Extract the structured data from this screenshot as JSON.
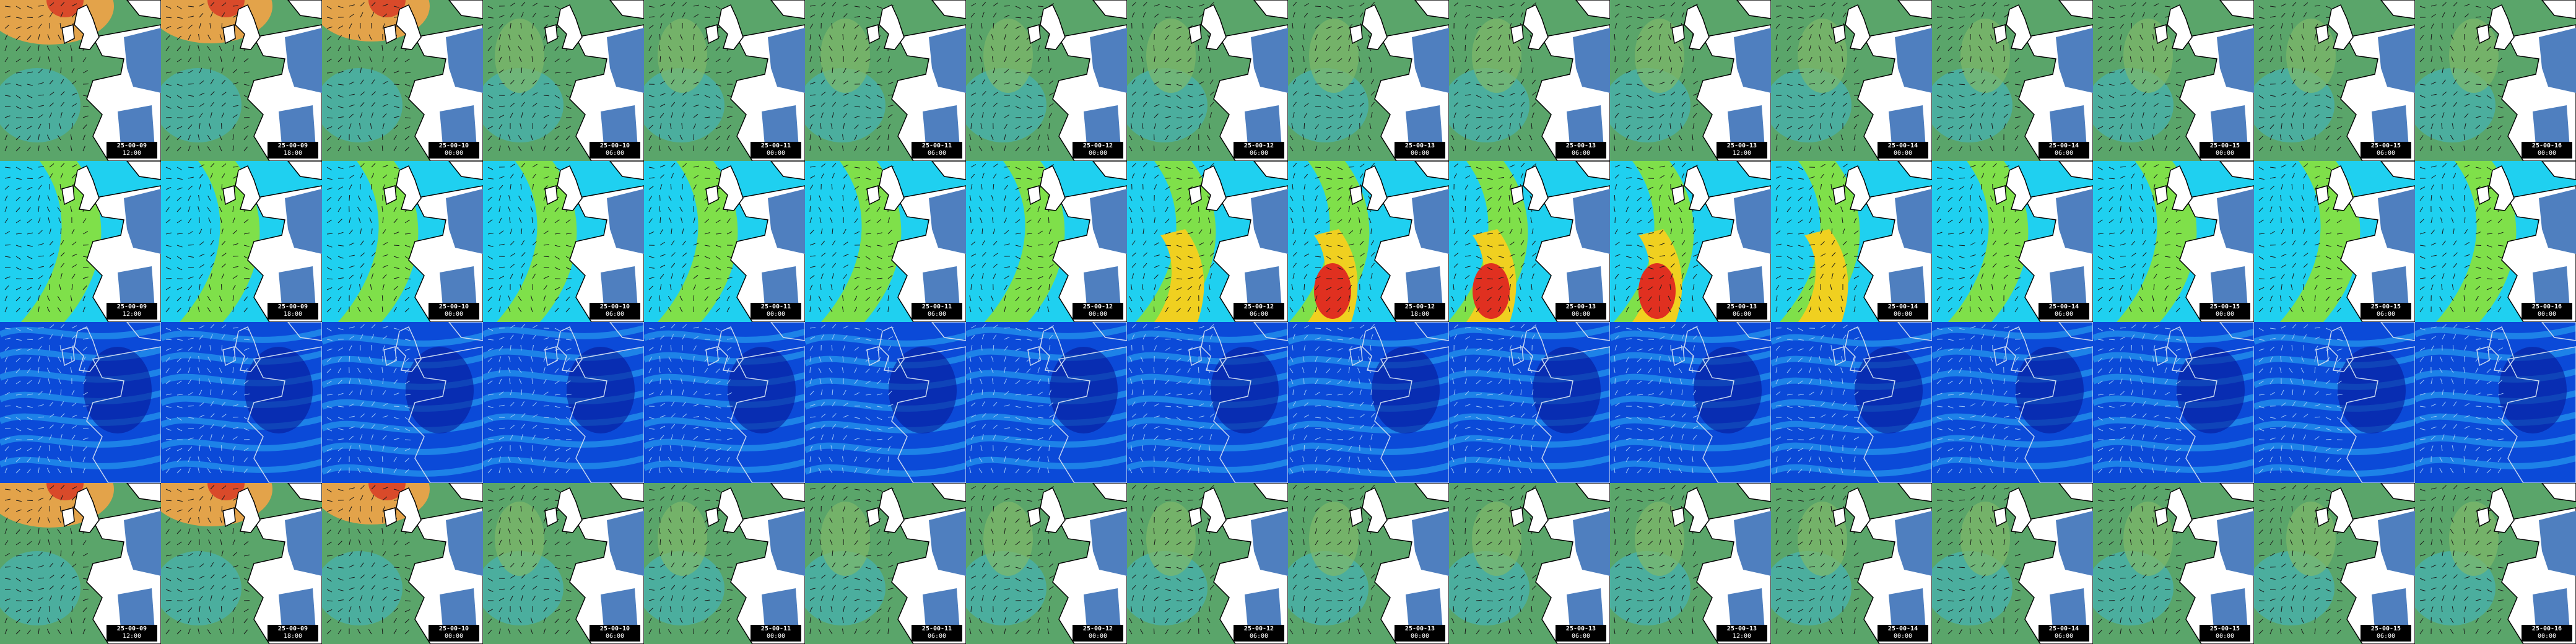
{
  "rows": [
    {
      "name": "row-1",
      "palette": "wind",
      "frames": [
        {
          "date": "25-00-09",
          "time": "12:00",
          "level": 0.85
        },
        {
          "date": "25-00-09",
          "time": "18:00",
          "level": 0.75
        },
        {
          "date": "25-00-10",
          "time": "00:00",
          "level": 0.6
        },
        {
          "date": "25-00-10",
          "time": "06:00",
          "level": 0.5
        },
        {
          "date": "25-00-11",
          "time": "00:00",
          "level": 0.35
        },
        {
          "date": "25-00-11",
          "time": "06:00",
          "level": 0.35
        },
        {
          "date": "25-00-12",
          "time": "00:00",
          "level": 0.25
        },
        {
          "date": "25-00-12",
          "time": "06:00",
          "level": 0.2
        },
        {
          "date": "25-00-13",
          "time": "00:00",
          "level": 0.3
        },
        {
          "date": "25-00-13",
          "time": "06:00",
          "level": 0.3
        },
        {
          "date": "25-00-13",
          "time": "12:00",
          "level": 0.35
        },
        {
          "date": "25-00-14",
          "time": "00:00",
          "level": 0.3
        },
        {
          "date": "25-00-14",
          "time": "06:00",
          "level": 0.25
        },
        {
          "date": "25-00-15",
          "time": "00:00",
          "level": 0.2
        },
        {
          "date": "25-00-15",
          "time": "06:00",
          "level": 0.2
        },
        {
          "date": "25-00-16",
          "time": "00:00",
          "level": 0.25
        }
      ]
    },
    {
      "name": "row-2",
      "palette": "wave",
      "frames": [
        {
          "date": "25-00-09",
          "time": "12:00",
          "level": 0.45
        },
        {
          "date": "25-00-09",
          "time": "18:00",
          "level": 0.5
        },
        {
          "date": "25-00-10",
          "time": "00:00",
          "level": 0.55
        },
        {
          "date": "25-00-10",
          "time": "06:00",
          "level": 0.6
        },
        {
          "date": "25-00-11",
          "time": "00:00",
          "level": 0.6
        },
        {
          "date": "25-00-11",
          "time": "06:00",
          "level": 0.55
        },
        {
          "date": "25-00-12",
          "time": "00:00",
          "level": 0.5
        },
        {
          "date": "25-00-12",
          "time": "06:00",
          "level": 0.7
        },
        {
          "date": "25-00-12",
          "time": "18:00",
          "level": 0.85
        },
        {
          "date": "25-00-13",
          "time": "00:00",
          "level": 0.9
        },
        {
          "date": "25-00-13",
          "time": "06:00",
          "level": 0.8
        },
        {
          "date": "25-00-14",
          "time": "00:00",
          "level": 0.7
        },
        {
          "date": "25-00-14",
          "time": "06:00",
          "level": 0.55
        },
        {
          "date": "25-00-15",
          "time": "00:00",
          "level": 0.4
        },
        {
          "date": "25-00-15",
          "time": "06:00",
          "level": 0.35
        },
        {
          "date": "25-00-16",
          "time": "00:00",
          "level": 0.45
        }
      ]
    },
    {
      "name": "row-3",
      "palette": "current",
      "frames": [
        {
          "date": "",
          "time": "",
          "level": 0.4
        },
        {
          "date": "",
          "time": "",
          "level": 0.4
        },
        {
          "date": "",
          "time": "",
          "level": 0.4
        },
        {
          "date": "",
          "time": "",
          "level": 0.4
        },
        {
          "date": "",
          "time": "",
          "level": 0.4
        },
        {
          "date": "",
          "time": "",
          "level": 0.4
        },
        {
          "date": "",
          "time": "",
          "level": 0.4
        },
        {
          "date": "",
          "time": "",
          "level": 0.4
        },
        {
          "date": "",
          "time": "",
          "level": 0.4
        },
        {
          "date": "",
          "time": "",
          "level": 0.4
        },
        {
          "date": "",
          "time": "",
          "level": 0.4
        },
        {
          "date": "",
          "time": "",
          "level": 0.4
        },
        {
          "date": "",
          "time": "",
          "level": 0.4
        },
        {
          "date": "",
          "time": "",
          "level": 0.4
        },
        {
          "date": "",
          "time": "",
          "level": 0.4
        },
        {
          "date": "",
          "time": "",
          "level": 0.4
        }
      ]
    },
    {
      "name": "row-4",
      "palette": "wind",
      "frames": [
        {
          "date": "25-00-09",
          "time": "12:00",
          "level": 0.85
        },
        {
          "date": "25-00-09",
          "time": "18:00",
          "level": 0.75
        },
        {
          "date": "25-00-10",
          "time": "00:00",
          "level": 0.6
        },
        {
          "date": "25-00-10",
          "time": "06:00",
          "level": 0.5
        },
        {
          "date": "25-00-11",
          "time": "00:00",
          "level": 0.35
        },
        {
          "date": "25-00-11",
          "time": "06:00",
          "level": 0.35
        },
        {
          "date": "25-00-12",
          "time": "00:00",
          "level": 0.25
        },
        {
          "date": "25-00-12",
          "time": "06:00",
          "level": 0.2
        },
        {
          "date": "25-00-13",
          "time": "00:00",
          "level": 0.3
        },
        {
          "date": "25-00-13",
          "time": "06:00",
          "level": 0.3
        },
        {
          "date": "25-00-13",
          "time": "12:00",
          "level": 0.35
        },
        {
          "date": "25-00-14",
          "time": "00:00",
          "level": 0.3
        },
        {
          "date": "25-00-14",
          "time": "06:00",
          "level": 0.25
        },
        {
          "date": "25-00-15",
          "time": "00:00",
          "level": 0.2
        },
        {
          "date": "25-00-15",
          "time": "06:00",
          "level": 0.2
        },
        {
          "date": "25-00-16",
          "time": "00:00",
          "level": 0.25
        }
      ]
    }
  ],
  "colors": {
    "land": "#ffffff",
    "land_inland": "#4f7fbf",
    "coast": "#000000",
    "wind_sea": "#5aa56a",
    "wind_calm": "#3fb7c9",
    "wind_strong": "#e3a34a",
    "wind_peak": "#d94a2a",
    "wave_low": "#1fd0f0",
    "wave_mid": "#7fe04a",
    "wave_high": "#f0d020",
    "wave_peak": "#e03020",
    "current_bg": "#0b4ad8",
    "current_hi": "#2aa8f4",
    "current_low": "#061a9a",
    "arrow": "#1a1a1a",
    "label_bg": "#000000",
    "label_fg": "#ffffff"
  }
}
